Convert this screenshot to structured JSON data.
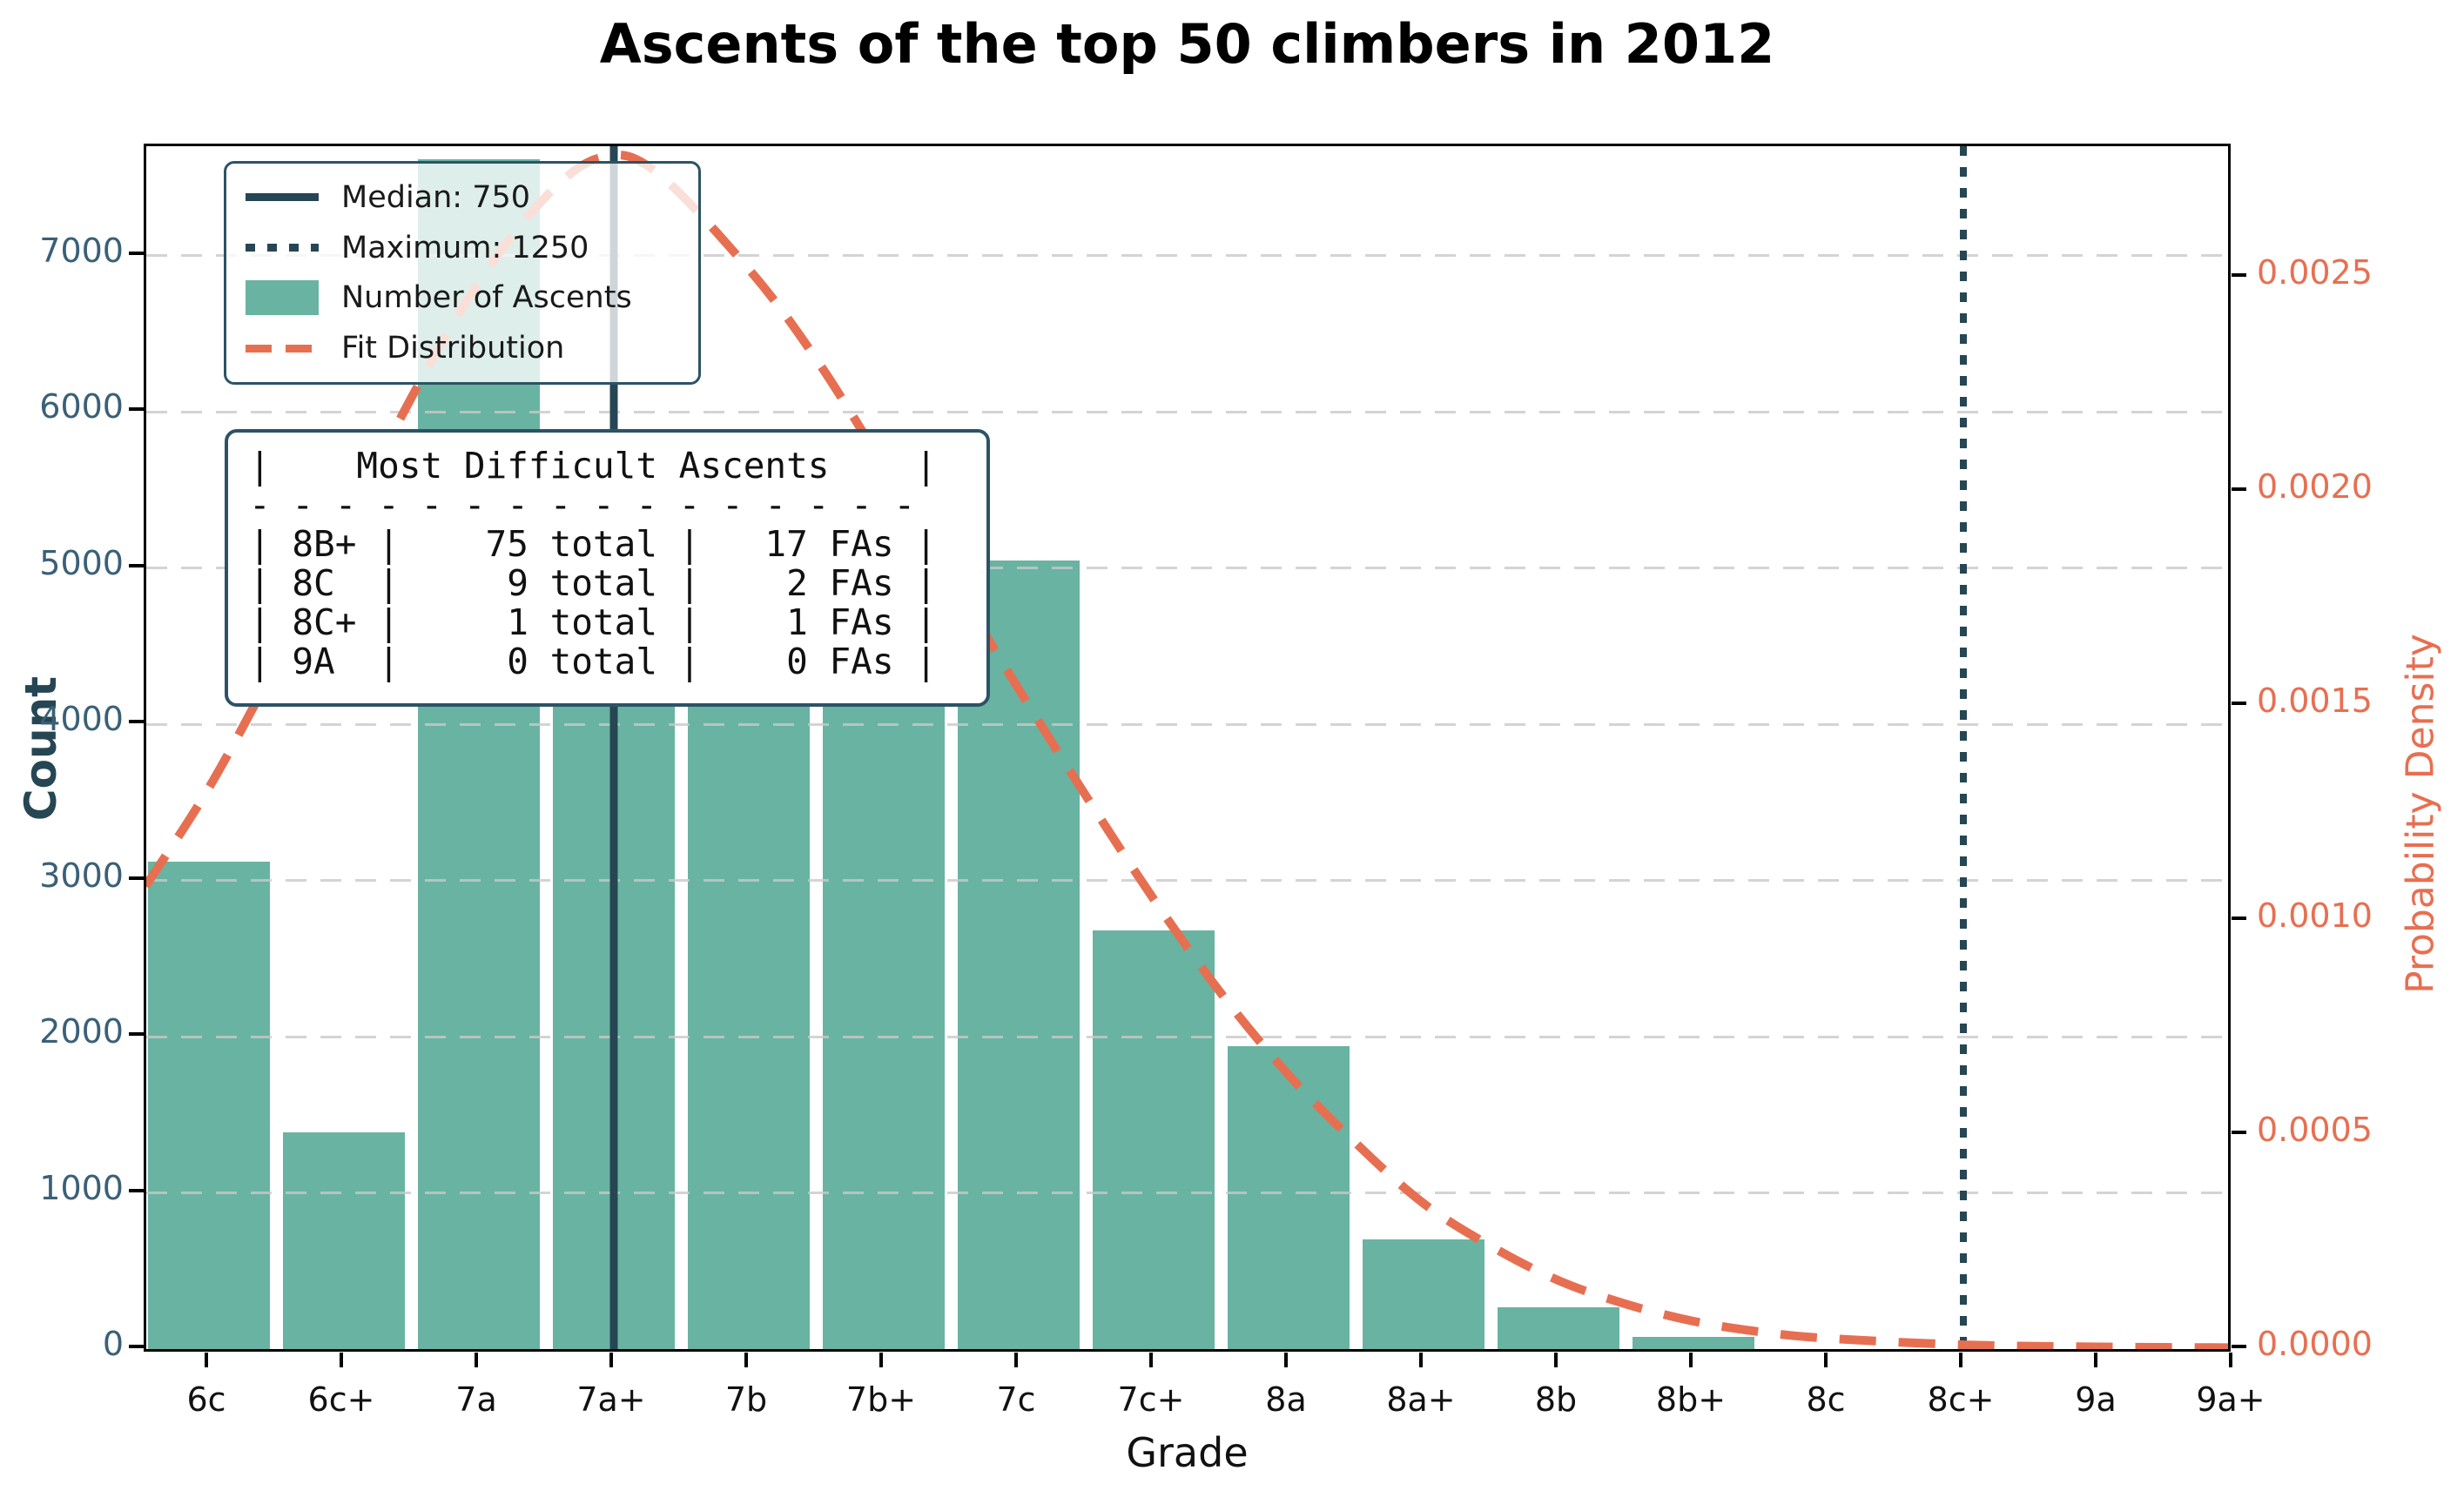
{
  "title": "Ascents of the top 50 climbers in 2012",
  "axes": {
    "xlabel": "Grade",
    "ylabel_left": "Count",
    "ylabel_right": "Probability Density",
    "y_left_ticks": [
      {
        "label": "0",
        "value": 0
      },
      {
        "label": "1000",
        "value": 1000
      },
      {
        "label": "2000",
        "value": 2000
      },
      {
        "label": "3000",
        "value": 3000
      },
      {
        "label": "4000",
        "value": 4000
      },
      {
        "label": "5000",
        "value": 5000
      },
      {
        "label": "6000",
        "value": 6000
      },
      {
        "label": "7000",
        "value": 7000
      }
    ],
    "y_right_ticks": [
      {
        "label": "0.0000",
        "value": 0.0
      },
      {
        "label": "0.0005",
        "value": 0.0005
      },
      {
        "label": "0.0010",
        "value": 0.001
      },
      {
        "label": "0.0015",
        "value": 0.0015
      },
      {
        "label": "0.0020",
        "value": 0.002
      },
      {
        "label": "0.0025",
        "value": 0.0025
      }
    ]
  },
  "legend": {
    "items": [
      {
        "label": "Median: 750",
        "type": "solid",
        "icon": "solid-line-swatch"
      },
      {
        "label": "Maximum: 1250",
        "type": "dotted",
        "icon": "dotted-line-swatch"
      },
      {
        "label": "Number of Ascents",
        "type": "patch",
        "icon": "bar-patch-swatch"
      },
      {
        "label": "Fit Distribution",
        "type": "dashed",
        "icon": "dashed-line-swatch"
      }
    ]
  },
  "stats_box": {
    "lines": [
      "|    Most Difficult Ascents    |",
      "- - - - - - - - - - - - - - - -",
      "| 8B+ |    75 total |   17 FAs |",
      "| 8C  |     9 total |    2 FAs |",
      "| 8C+ |     1 total |    1 FAs |",
      "| 9A  |     0 total |    0 FAs |"
    ]
  },
  "colors": {
    "teal": "#69b3a2",
    "orange": "#e76f51",
    "dark": "#264653",
    "tick_left": "#3a6078",
    "grid": "#c9c9c9"
  },
  "chart_data": {
    "type": "bar",
    "title": "Ascents of the top 50 climbers in 2012",
    "xlabel": "Grade",
    "ylabel": "Count",
    "ylabel2": "Probability Density",
    "categories": [
      "6c",
      "6c+",
      "7a",
      "7a+",
      "7b",
      "7b+",
      "7c",
      "7c+",
      "8a",
      "8a+",
      "8b",
      "8b+",
      "8c",
      "8c+",
      "9a",
      "9a+"
    ],
    "values": [
      3120,
      1390,
      7620,
      5500,
      5350,
      5150,
      5050,
      2680,
      1940,
      700,
      270,
      80,
      0,
      0,
      0,
      0
    ],
    "values_note": "7a+, 7b, 7b+ tops are occluded by the stats box in the screenshot; estimated",
    "ylim": [
      0,
      7735
    ],
    "y2lim": [
      0,
      0.002819
    ],
    "grid": "horizontal-dashed",
    "legend_position": "upper-left",
    "median_line": {
      "label": "Median: 750",
      "at_category": "7a+",
      "style": "solid"
    },
    "maximum_line": {
      "label": "Maximum: 1250",
      "at_category": "8c+",
      "style": "dotted"
    },
    "fit_curve": {
      "name": "Fit Distribution",
      "style": "dashed",
      "x_index": [
        -0.47,
        0,
        0.5,
        1,
        1.5,
        2,
        2.5,
        2.9,
        3.3,
        4,
        4.5,
        5,
        5.5,
        6,
        6.5,
        7,
        7.5,
        8,
        8.5,
        9,
        9.5,
        10,
        10.5,
        11,
        11.5,
        12,
        13,
        14,
        15.2
      ],
      "density": [
        0.00108,
        0.00131,
        0.0016,
        0.00191,
        0.00222,
        0.00249,
        0.00269,
        0.00278,
        0.00275,
        0.00252,
        0.00231,
        0.00206,
        0.0018,
        0.00154,
        0.00129,
        0.00105,
        0.00083,
        0.00064,
        0.00048,
        0.00034,
        0.00024,
        0.00016,
        0.000105,
        6.5e-05,
        4e-05,
        2.5e-05,
        1e-05,
        5e-06,
        3e-06
      ]
    }
  }
}
